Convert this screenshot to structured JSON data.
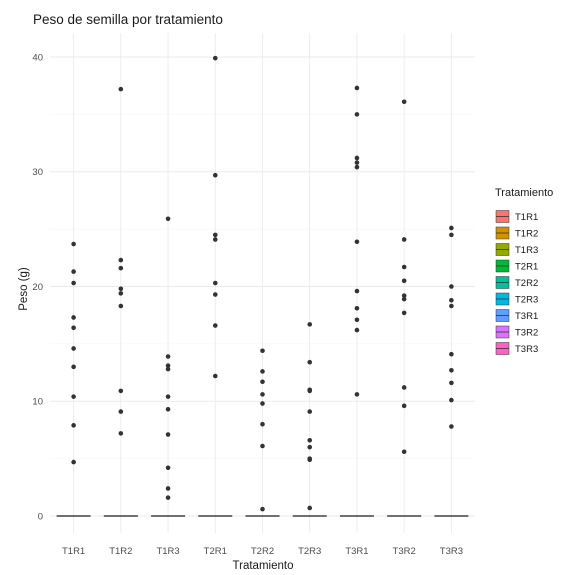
{
  "chart_data": {
    "type": "box",
    "title": "Peso de semilla por tratamiento",
    "xlabel": "Tratamiento",
    "ylabel": "Peso (g)",
    "ylim": [
      -1.5,
      42
    ],
    "yticks": [
      0,
      10,
      20,
      30,
      40
    ],
    "grid": true,
    "legend_position": "right",
    "legend_title": "Tratamiento",
    "categories": [
      "T1R1",
      "T1R2",
      "T1R3",
      "T2R1",
      "T2R2",
      "T2R3",
      "T3R1",
      "T3R2",
      "T3R3"
    ],
    "colors": [
      "#F8766D",
      "#D39200",
      "#93AA00",
      "#00BA38",
      "#00C19F",
      "#00B9E3",
      "#619CFF",
      "#DB72FB",
      "#FF61C3"
    ],
    "box_values": [
      0,
      0,
      0,
      0,
      0,
      0,
      0,
      0,
      0
    ],
    "points": [
      [
        23.7,
        21.3,
        20.3,
        17.3,
        16.4,
        14.6,
        13.0,
        10.4,
        7.9,
        4.7
      ],
      [
        37.2,
        22.3,
        21.6,
        19.8,
        19.4,
        18.3,
        10.9,
        9.1,
        7.2
      ],
      [
        25.9,
        13.9,
        13.1,
        12.8,
        10.4,
        9.3,
        7.1,
        4.2,
        2.4,
        1.6
      ],
      [
        39.9,
        29.7,
        24.5,
        24.1,
        20.3,
        19.3,
        16.6,
        12.2
      ],
      [
        14.4,
        12.6,
        11.7,
        10.6,
        9.8,
        8.0,
        6.1,
        0.6
      ],
      [
        16.7,
        13.4,
        11.0,
        10.9,
        9.1,
        6.6,
        6.0,
        5.0,
        4.9,
        0.7
      ],
      [
        37.3,
        35.0,
        31.2,
        30.8,
        30.4,
        23.9,
        19.6,
        18.1,
        17.1,
        16.2,
        10.6
      ],
      [
        36.1,
        24.1,
        21.7,
        20.5,
        19.2,
        18.9,
        17.7,
        11.2,
        9.6,
        5.6
      ],
      [
        25.1,
        24.5,
        20.0,
        18.8,
        18.3,
        14.1,
        12.7,
        11.6,
        10.1,
        7.8
      ]
    ]
  }
}
